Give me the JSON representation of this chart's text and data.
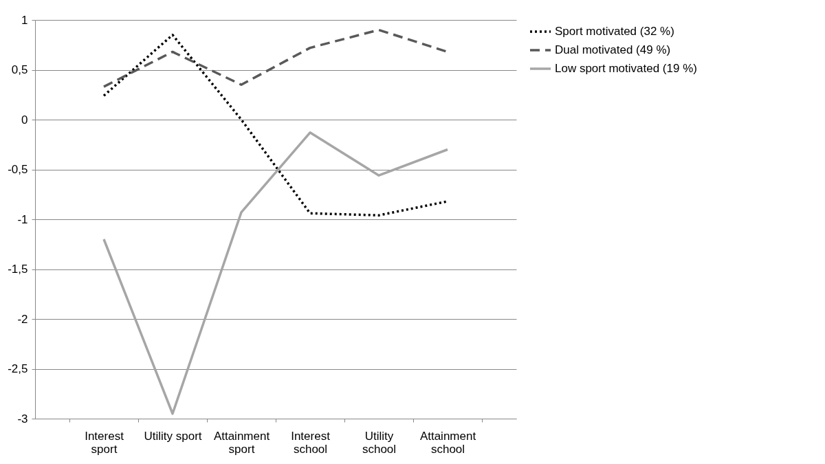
{
  "chart_data": {
    "type": "line",
    "categories": [
      "Interest sport",
      "Utility sport",
      "Attainment sport",
      "Interest school",
      "Utility school",
      "Attainment school"
    ],
    "series": [
      {
        "name": "Sport motivated (32 %)",
        "color": "#000000",
        "line_style": "dotted",
        "values": [
          0.24,
          0.85,
          0.0,
          -0.94,
          -0.96,
          -0.82
        ]
      },
      {
        "name": "Dual motivated (49 %)",
        "color": "#595959",
        "line_style": "dashed",
        "values": [
          0.33,
          0.68,
          0.35,
          0.72,
          0.9,
          0.68
        ]
      },
      {
        "name": "Low sport motivated (19 %)",
        "color": "#a6a6a6",
        "line_style": "solid",
        "values": [
          -1.2,
          -2.95,
          -0.93,
          -0.13,
          -0.56,
          -0.3
        ]
      }
    ],
    "ylim": [
      -3,
      1
    ],
    "yticks": [
      1,
      {
        "value": 0.5,
        "label": "0,5"
      },
      0,
      {
        "value": -0.5,
        "label": "-0,5"
      },
      -1,
      {
        "value": -1.5,
        "label": "-1,5"
      },
      -2,
      {
        "value": -2.5,
        "label": "-2,5"
      },
      -3
    ],
    "grid": "y",
    "legend": "right",
    "marker": "none"
  }
}
